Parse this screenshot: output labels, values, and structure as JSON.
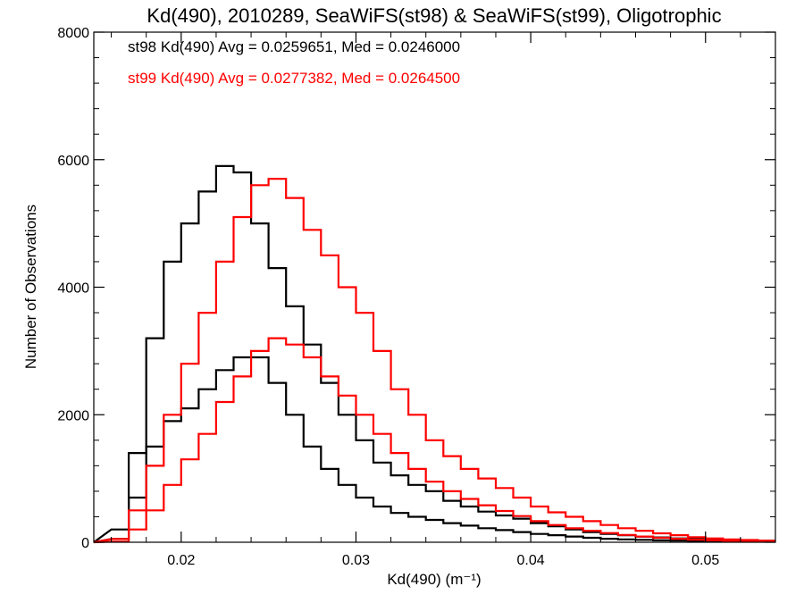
{
  "chart_data": {
    "type": "line",
    "title": "Kd(490), 2010289, SeaWiFS(st98) & SeaWiFS(st99), Oligotrophic",
    "xlabel": "Kd(490) (m⁻¹)",
    "ylabel": "Number of Observations",
    "xlim": [
      0.015,
      0.054
    ],
    "ylim": [
      0,
      8000
    ],
    "x_ticks": [
      0.02,
      0.03,
      0.04,
      0.05
    ],
    "x_tick_labels": [
      "0.02",
      "0.03",
      "0.04",
      "0.05"
    ],
    "y_ticks": [
      0,
      2000,
      4000,
      6000,
      8000
    ],
    "y_tick_labels": [
      "0",
      "2000",
      "4000",
      "6000",
      "8000"
    ],
    "grid": false,
    "legend_position": "top-left",
    "annotations": [
      {
        "text": "st98 Kd(490) Avg = 0.0259651, Med = 0.0246000",
        "color": "#000000"
      },
      {
        "text": "st99 Kd(490) Avg = 0.0277382, Med = 0.0264500",
        "color": "#ff0000"
      }
    ],
    "series": [
      {
        "color": "#000000",
        "x": [
          0.0165,
          0.0175,
          0.0185,
          0.0195,
          0.0205,
          0.0215,
          0.0225,
          0.0235,
          0.0245,
          0.0255,
          0.0265,
          0.0275,
          0.0285,
          0.0295,
          0.0305,
          0.0315,
          0.0325,
          0.0335,
          0.0345,
          0.0355,
          0.0365,
          0.0375,
          0.0385,
          0.0395,
          0.0405,
          0.0415,
          0.0425,
          0.0435,
          0.0445,
          0.0455,
          0.0465,
          0.0475,
          0.0485,
          0.0495,
          0.0505,
          0.0515,
          0.0525,
          0.0535
        ],
        "upper": [
          200,
          1400,
          3200,
          4400,
          5000,
          5500,
          5900,
          5800,
          5000,
          4300,
          3700,
          3100,
          2500,
          2000,
          1600,
          1250,
          1050,
          900,
          800,
          650,
          560,
          480,
          420,
          370,
          300,
          250,
          200,
          160,
          130,
          110,
          90,
          75,
          60,
          50,
          40,
          35,
          30,
          25
        ],
        "lower": [
          50,
          700,
          1500,
          1900,
          2100,
          2400,
          2700,
          2900,
          2900,
          2500,
          2000,
          1500,
          1150,
          900,
          700,
          560,
          460,
          400,
          350,
          300,
          260,
          220,
          190,
          160,
          130,
          110,
          90,
          70,
          55,
          45,
          38,
          30,
          25,
          20,
          15,
          12,
          10,
          8
        ]
      },
      {
        "color": "#ff0000",
        "x": [
          0.0165,
          0.0175,
          0.0185,
          0.0195,
          0.0205,
          0.0215,
          0.0225,
          0.0235,
          0.0245,
          0.0255,
          0.0265,
          0.0275,
          0.0285,
          0.0295,
          0.0305,
          0.0315,
          0.0325,
          0.0335,
          0.0345,
          0.0355,
          0.0365,
          0.0375,
          0.0385,
          0.0395,
          0.0405,
          0.0415,
          0.0425,
          0.0435,
          0.0445,
          0.0455,
          0.0465,
          0.0475,
          0.0485,
          0.0495,
          0.0505,
          0.0515,
          0.0525,
          0.0535
        ],
        "upper": [
          50,
          500,
          1200,
          2000,
          2800,
          3600,
          4400,
          5100,
          5600,
          5700,
          5400,
          4900,
          4500,
          4000,
          3600,
          3000,
          2400,
          2000,
          1600,
          1350,
          1150,
          1000,
          850,
          700,
          560,
          470,
          400,
          330,
          270,
          220,
          180,
          140,
          110,
          80,
          60,
          45,
          35,
          25
        ],
        "lower": [
          10,
          200,
          500,
          900,
          1300,
          1700,
          2200,
          2600,
          3000,
          3200,
          3100,
          2900,
          2600,
          2300,
          2000,
          1700,
          1400,
          1150,
          950,
          800,
          680,
          580,
          490,
          410,
          330,
          270,
          220,
          180,
          145,
          115,
          90,
          70,
          55,
          40,
          30,
          22,
          16,
          10
        ]
      }
    ]
  }
}
